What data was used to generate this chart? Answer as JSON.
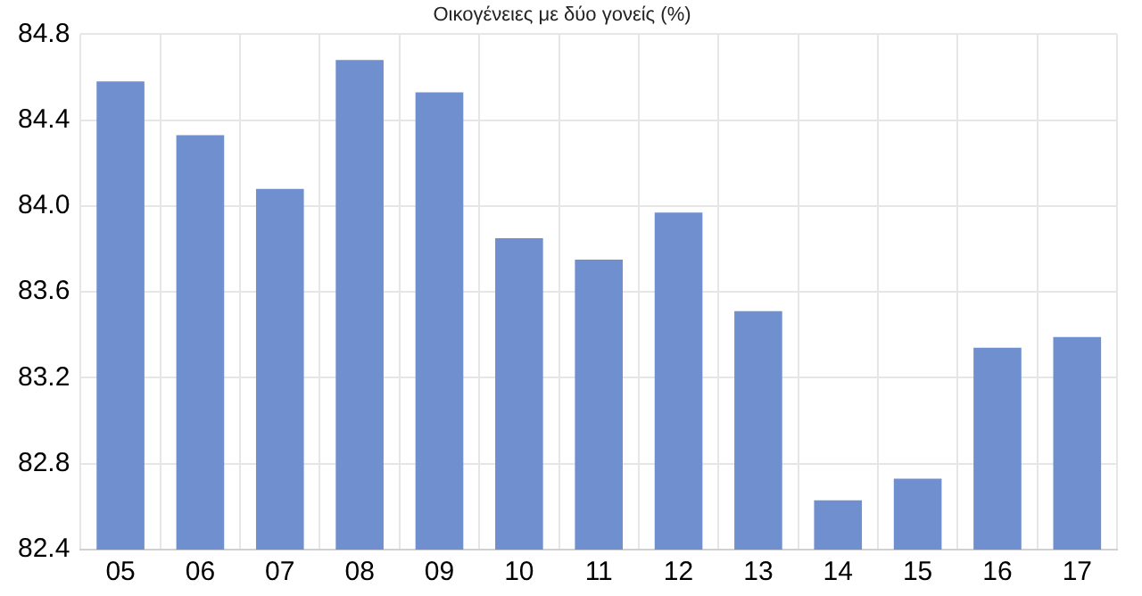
{
  "chart_data": {
    "type": "bar",
    "title": "Οικογένειες με δύο γονείς (%)",
    "categories": [
      "05",
      "06",
      "07",
      "08",
      "09",
      "10",
      "11",
      "12",
      "13",
      "14",
      "15",
      "16",
      "17"
    ],
    "values": [
      84.58,
      84.33,
      84.08,
      84.68,
      84.53,
      83.85,
      83.75,
      83.97,
      83.51,
      82.63,
      82.73,
      83.34,
      83.39
    ],
    "color": "#6f8fcf",
    "ylim": [
      82.4,
      84.8
    ],
    "yticks": [
      82.4,
      82.8,
      83.2,
      83.6,
      {
        "value": 84,
        "label": "84.0"
      },
      84.4,
      84.8
    ],
    "grid": true
  }
}
